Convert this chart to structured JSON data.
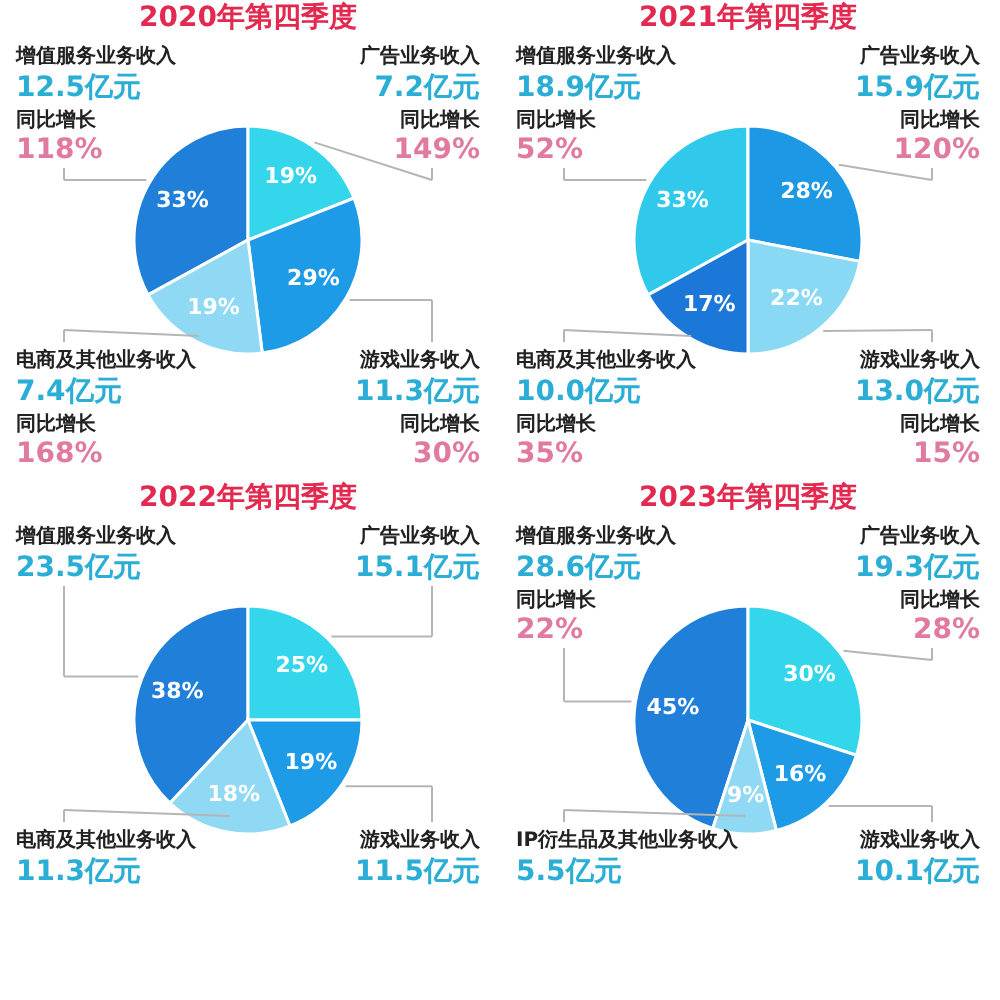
{
  "chart_data": [
    {
      "type": "pie",
      "title": "2020年第四季度",
      "categories": [
        "增值服务业务收入",
        "广告业务收入",
        "游戏业务收入",
        "电商及其他业务收入"
      ],
      "values": [
        33,
        19,
        29,
        19
      ],
      "value_labels": [
        "33%",
        "19%",
        "29%",
        "19%"
      ],
      "colors": [
        "#1f7fd9",
        "#33d6ea",
        "#1e9be6",
        "#90d9f4"
      ],
      "legend": false,
      "annotations": [
        "12.5亿元",
        "7.2亿元",
        "11.3亿元",
        "7.4亿元",
        "同比增长",
        "118%",
        "同比增长",
        "149%",
        "同比增长",
        "30%",
        "同比增长",
        "168%"
      ]
    },
    {
      "type": "pie",
      "title": "2021年第四季度",
      "categories": [
        "增值服务业务收入",
        "广告业务收入",
        "游戏业务收入",
        "电商及其他业务收入"
      ],
      "values": [
        33,
        28,
        22,
        17
      ],
      "value_labels": [
        "33%",
        "28%",
        "22%",
        "17%"
      ],
      "colors": [
        "#30c9ec",
        "#1d98e4",
        "#8ad9f4",
        "#1b78d8"
      ],
      "legend": false,
      "annotations": [
        "18.9亿元",
        "15.9亿元",
        "13.0亿元",
        "10.0亿元",
        "同比增长",
        "52%",
        "同比增长",
        "120%",
        "同比增长",
        "15%",
        "同比增长",
        "35%"
      ]
    },
    {
      "type": "pie",
      "title": "2022年第四季度",
      "categories": [
        "增值服务业务收入",
        "广告业务收入",
        "游戏业务收入",
        "电商及其他业务收入"
      ],
      "values": [
        38,
        25,
        19,
        18
      ],
      "value_labels": [
        "38%",
        "25%",
        "19%",
        "18%"
      ],
      "colors": [
        "#1f7fd9",
        "#33d6ea",
        "#1e9be6",
        "#90d9f4"
      ],
      "legend": false,
      "annotations": [
        "23.5亿元",
        "15.1亿元",
        "11.5亿元",
        "11.3亿元"
      ]
    },
    {
      "type": "pie",
      "title": "2023年第四季度",
      "categories": [
        "增值服务业务收入",
        "广告业务收入",
        "游戏业务收入",
        "IP衍生品及其他业务收入"
      ],
      "values": [
        45,
        30,
        16,
        9
      ],
      "value_labels": [
        "45%",
        "30%",
        "16%",
        "9%"
      ],
      "colors": [
        "#1f7fd9",
        "#33d6ea",
        "#1e9be6",
        "#90d9f4"
      ],
      "legend": false,
      "annotations": [
        "28.6亿元",
        "19.3亿元",
        "10.1亿元",
        "5.5亿元",
        "同比增长",
        "22%",
        "同比增长",
        "28%"
      ]
    }
  ]
}
